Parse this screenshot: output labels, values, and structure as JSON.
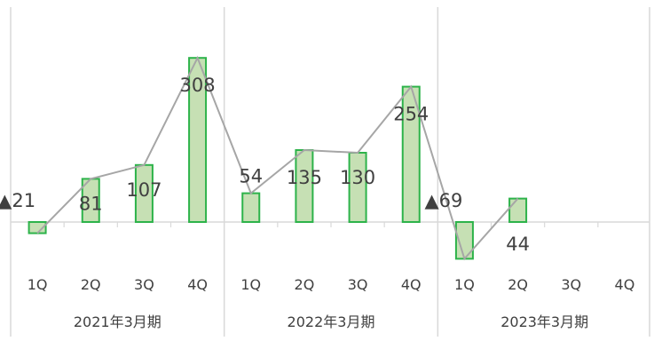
{
  "chart_data": {
    "type": "bar",
    "overlay_line": true,
    "colors": {
      "bar_fill": "#c6e0b4",
      "bar_stroke": "#2db34a",
      "line": "#a6a6a6",
      "axis": "#d9d9d9",
      "text": "#404040"
    },
    "ylim": [
      -75,
      320
    ],
    "groups": [
      {
        "label": "2021年3月期",
        "quarters": [
          "1Q",
          "2Q",
          "3Q",
          "4Q"
        ],
        "values": [
          -21,
          81,
          107,
          308
        ],
        "data_labels": [
          "▲21",
          "81",
          "107",
          "308"
        ]
      },
      {
        "label": "2022年3月期",
        "quarters": [
          "1Q",
          "2Q",
          "3Q",
          "4Q"
        ],
        "values": [
          54,
          135,
          130,
          254
        ],
        "data_labels": [
          "54",
          "135",
          "130",
          "254"
        ]
      },
      {
        "label": "2023年3月期",
        "quarters": [
          "1Q",
          "2Q",
          "3Q",
          "4Q"
        ],
        "values": [
          -69,
          44,
          null,
          null
        ],
        "data_labels": [
          "▲69",
          "44",
          "",
          ""
        ]
      }
    ]
  }
}
